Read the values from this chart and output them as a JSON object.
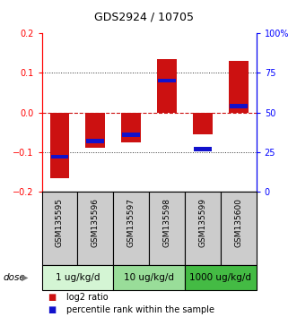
{
  "title": "GDS2924 / 10705",
  "samples": [
    "GSM135595",
    "GSM135596",
    "GSM135597",
    "GSM135598",
    "GSM135599",
    "GSM135600"
  ],
  "log2_ratios": [
    -0.165,
    -0.09,
    -0.075,
    0.135,
    -0.055,
    0.13
  ],
  "percentile_ranks": [
    22,
    32,
    36,
    70,
    27,
    54
  ],
  "ylim_left": [
    -0.2,
    0.2
  ],
  "ylim_right": [
    0,
    100
  ],
  "yticks_left": [
    -0.2,
    -0.1,
    0.0,
    0.1,
    0.2
  ],
  "yticks_right": [
    0,
    25,
    50,
    75,
    100
  ],
  "ytick_labels_right": [
    "0",
    "25",
    "50",
    "75",
    "100%"
  ],
  "dose_groups": [
    {
      "label": "1 ug/kg/d",
      "cols": [
        0,
        1
      ],
      "color": "#d4f5d4"
    },
    {
      "label": "10 ug/kg/d",
      "cols": [
        2,
        3
      ],
      "color": "#99dd99"
    },
    {
      "label": "1000 ug/kg/d",
      "cols": [
        4,
        5
      ],
      "color": "#44bb44"
    }
  ],
  "bar_width": 0.55,
  "blue_bar_height": 0.01,
  "bar_color_red": "#cc1111",
  "bar_color_blue": "#1111cc",
  "hline0_color": "#cc1111",
  "dot_line_color": "#333333",
  "bg_sample_row": "#cccccc",
  "legend_red_label": "log2 ratio",
  "legend_blue_label": "percentile rank within the sample",
  "dose_label": "dose",
  "title_fontsize": 9,
  "tick_fontsize": 7,
  "legend_fontsize": 7,
  "dose_fontsize": 7.5,
  "sample_fontsize": 6.5
}
